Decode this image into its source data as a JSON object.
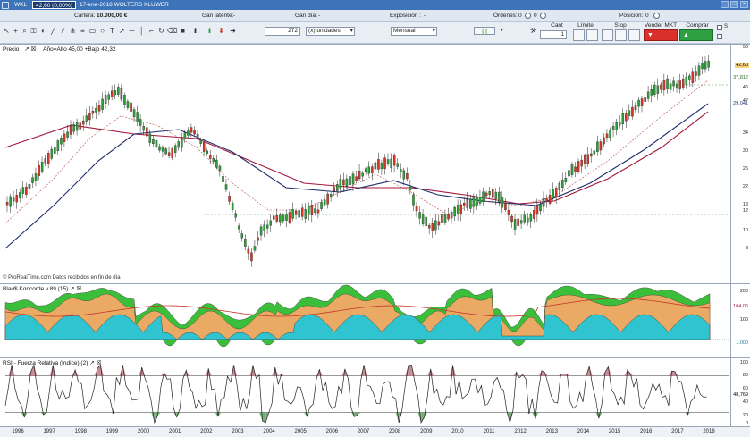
{
  "window": {
    "symbol_menu": "WKL",
    "price_badge": "42,60 (0,00%)",
    "date_name": "17-ene-2018  WOLTERS KLUWER"
  },
  "info": {
    "cartera_label": "Cartera:",
    "cartera_value": "10.000,00 €",
    "gan_latente_label": "Gan latente:",
    "gan_latente_value": "-",
    "gan_dia_label": "Gan día:",
    "gan_dia_value": "-",
    "exposicion_label": "Exposición :",
    "exposicion_value": "-",
    "ordenes_label": "Órdenes:",
    "ordenes_value": "0",
    "ordenes_count": "0",
    "posicion_label": "Posición:",
    "posicion_value": "0"
  },
  "toolbar": {
    "quantity_value": "272",
    "units_select": "(x) unidades",
    "period_select": "Mensual",
    "cant_label": "Cant",
    "cant_value": "1",
    "limite_label": "Límite",
    "stop_label": "Stop",
    "vender_label": "Vender MKT",
    "comprar_label": "Comprar MKT",
    "s_label": "S"
  },
  "price_panel": {
    "title": "Precio",
    "subtitle": "Año=Alto 45,00 +Bajo 42,32",
    "footer": "© ProRealTime.com  Datos recibidos en fin de día",
    "axis_ticks": [
      "50",
      "46",
      "42",
      "34",
      "30",
      "26",
      "22",
      "18",
      "12",
      "10",
      "8"
    ],
    "last_price": "42,60",
    "level_label": "37,812",
    "ma_label": "29,041"
  },
  "blau_panel": {
    "title": "Blau$ Koncorde v.89 (15)",
    "axis_ticks": [
      "200",
      "100",
      "0"
    ],
    "level_label": "104,06",
    "level_label2": "1.000"
  },
  "rsi_panel": {
    "title": "RSI - Fuerza Relativa (Indice) (2)",
    "axis_ticks": [
      "100",
      "80",
      "60",
      "40",
      "20",
      "0"
    ],
    "level_label": "48,769"
  },
  "xaxis": {
    "years": [
      "1996",
      "1997",
      "1998",
      "1999",
      "2000",
      "2001",
      "2002",
      "2003",
      "2004",
      "2005",
      "2006",
      "2007",
      "2008",
      "2009",
      "2010",
      "2011",
      "2012",
      "2013",
      "2014",
      "2015",
      "2016",
      "2017",
      "2018"
    ]
  },
  "colors": {
    "up": "#2e9d3a",
    "down": "#d03a2a",
    "ma_long": "#a3173a",
    "ma_mid": "#1d2a6a",
    "ma_short": "#b44d4d",
    "cyan": "#2fc4d0",
    "orange": "#f2b26c",
    "green_fill": "#3bbf3b",
    "rsi_pink": "#c78c95",
    "rsi_green": "#7ab07a"
  }
}
